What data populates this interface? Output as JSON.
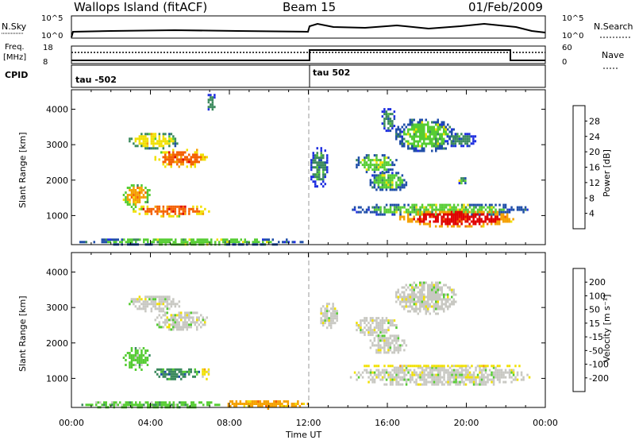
{
  "header": {
    "station": "Wallops Island (fitACF)",
    "beam": "Beam 15",
    "date": "01/Feb/2009"
  },
  "panels": {
    "noise": {
      "left_label": "N.Sky",
      "right_label": "N.Search",
      "left_ticks": [
        "10^5",
        "10^0"
      ],
      "right_ticks": [
        "10^5",
        "10^0"
      ]
    },
    "freq": {
      "left_label_1": "Freq.",
      "left_label_2": "[MHz]",
      "right_label": "Nave",
      "left_ticks": [
        "18",
        "8"
      ],
      "right_ticks": [
        "60",
        "0"
      ]
    },
    "cpid": {
      "label": "CPID",
      "segments": [
        "tau -502",
        "tau 502"
      ]
    }
  },
  "x_ticks": [
    "00:00",
    "04:00",
    "08:00",
    "12:00",
    "16:00",
    "20:00",
    "00:00"
  ],
  "x_label": "Time UT",
  "y_label": "Slant Range [km]",
  "y_ticks": [
    "1000",
    "2000",
    "3000",
    "4000"
  ],
  "colorbars": {
    "power": {
      "title": "Power [dB]",
      "labels": [
        "4",
        "8",
        "12",
        "16",
        "20",
        "24",
        "28"
      ]
    },
    "velocity": {
      "title": "Velocity [m s⁻¹]",
      "labels": [
        "-200",
        "-100",
        "-50",
        "-15",
        "15",
        "50",
        "100",
        "200"
      ]
    }
  },
  "chart_data": [
    {
      "type": "heatmap",
      "name": "power",
      "xlim_hours": [
        0,
        24
      ],
      "ylim_km": [
        180,
        4550
      ],
      "colors": [
        "#1f2fe0",
        "#1f4ea8",
        "#3c8a5e",
        "#55cc33",
        "#f1e000",
        "#f4a000",
        "#f46000",
        "#e00000"
      ],
      "regions": [
        {
          "t": [
            2.8,
            5.5
          ],
          "r": [
            2900,
            3400
          ],
          "level": 4
        },
        {
          "t": [
            4.1,
            6.9
          ],
          "r": [
            2350,
            2950
          ],
          "level": 6
        },
        {
          "t": [
            2.5,
            4.0
          ],
          "r": [
            1250,
            1950
          ],
          "level": 5
        },
        {
          "t": [
            3.0,
            7.0
          ],
          "r": [
            1000,
            1350
          ],
          "level": 6
        },
        {
          "t": [
            0.2,
            12.0
          ],
          "r": [
            180,
            420
          ],
          "level": 3
        },
        {
          "t": [
            6.8,
            7.3
          ],
          "r": [
            3900,
            4500
          ],
          "level": 2
        },
        {
          "t": [
            14.3,
            16.5
          ],
          "r": [
            2200,
            2800
          ],
          "level": 3
        },
        {
          "t": [
            15.6,
            16.4
          ],
          "r": [
            3400,
            4100
          ],
          "level": 2
        },
        {
          "t": [
            16.3,
            19.5
          ],
          "r": [
            2800,
            3800
          ],
          "level": 3
        },
        {
          "t": [
            18.8,
            20.5
          ],
          "r": [
            2950,
            3400
          ],
          "level": 2
        },
        {
          "t": [
            15.0,
            17.0
          ],
          "r": [
            1700,
            2300
          ],
          "level": 3
        },
        {
          "t": [
            19.5,
            20.0
          ],
          "r": [
            1900,
            2150
          ],
          "level": 3
        },
        {
          "t": [
            14.0,
            23.2
          ],
          "r": [
            1000,
            1400
          ],
          "level": 3
        },
        {
          "t": [
            16.5,
            22.5
          ],
          "r": [
            700,
            1200
          ],
          "level": 7
        },
        {
          "t": [
            12.0,
            13.0
          ],
          "r": [
            1800,
            3000
          ],
          "level": 2
        }
      ]
    },
    {
      "type": "heatmap",
      "name": "velocity",
      "xlim_hours": [
        0,
        24
      ],
      "ylim_km": [
        180,
        4550
      ],
      "colors": [
        "#e00000",
        "#f46000",
        "#f4a000",
        "#f1e000",
        "#c8c8c2",
        "#55cc33",
        "#3c8a5e",
        "#1f4ea8",
        "#1f2fe0"
      ],
      "regions": [
        {
          "t": [
            2.8,
            5.5
          ],
          "r": [
            2900,
            3400
          ],
          "level": 4
        },
        {
          "t": [
            4.1,
            6.9
          ],
          "r": [
            2350,
            2950
          ],
          "level": 4
        },
        {
          "t": [
            2.5,
            4.0
          ],
          "r": [
            1250,
            1950
          ],
          "level": 5
        },
        {
          "t": [
            4.0,
            6.5
          ],
          "r": [
            1000,
            1350
          ],
          "level": 6
        },
        {
          "t": [
            6.5,
            7.0
          ],
          "r": [
            1000,
            1350
          ],
          "level": 3
        },
        {
          "t": [
            0.2,
            7.5
          ],
          "r": [
            180,
            420
          ],
          "level": 5
        },
        {
          "t": [
            7.5,
            12.0
          ],
          "r": [
            180,
            450
          ],
          "level": 2
        },
        {
          "t": [
            12.5,
            13.5
          ],
          "r": [
            2400,
            3200
          ],
          "level": 4
        },
        {
          "t": [
            14.3,
            16.5
          ],
          "r": [
            2200,
            2800
          ],
          "level": 4
        },
        {
          "t": [
            16.3,
            19.5
          ],
          "r": [
            2800,
            3800
          ],
          "level": 4
        },
        {
          "t": [
            15.0,
            17.0
          ],
          "r": [
            1700,
            2300
          ],
          "level": 4
        },
        {
          "t": [
            14.0,
            23.2
          ],
          "r": [
            800,
            1400
          ],
          "level": 4
        },
        {
          "t": [
            14.5,
            23.0
          ],
          "r": [
            1350,
            1450
          ],
          "level": 3
        }
      ]
    }
  ]
}
